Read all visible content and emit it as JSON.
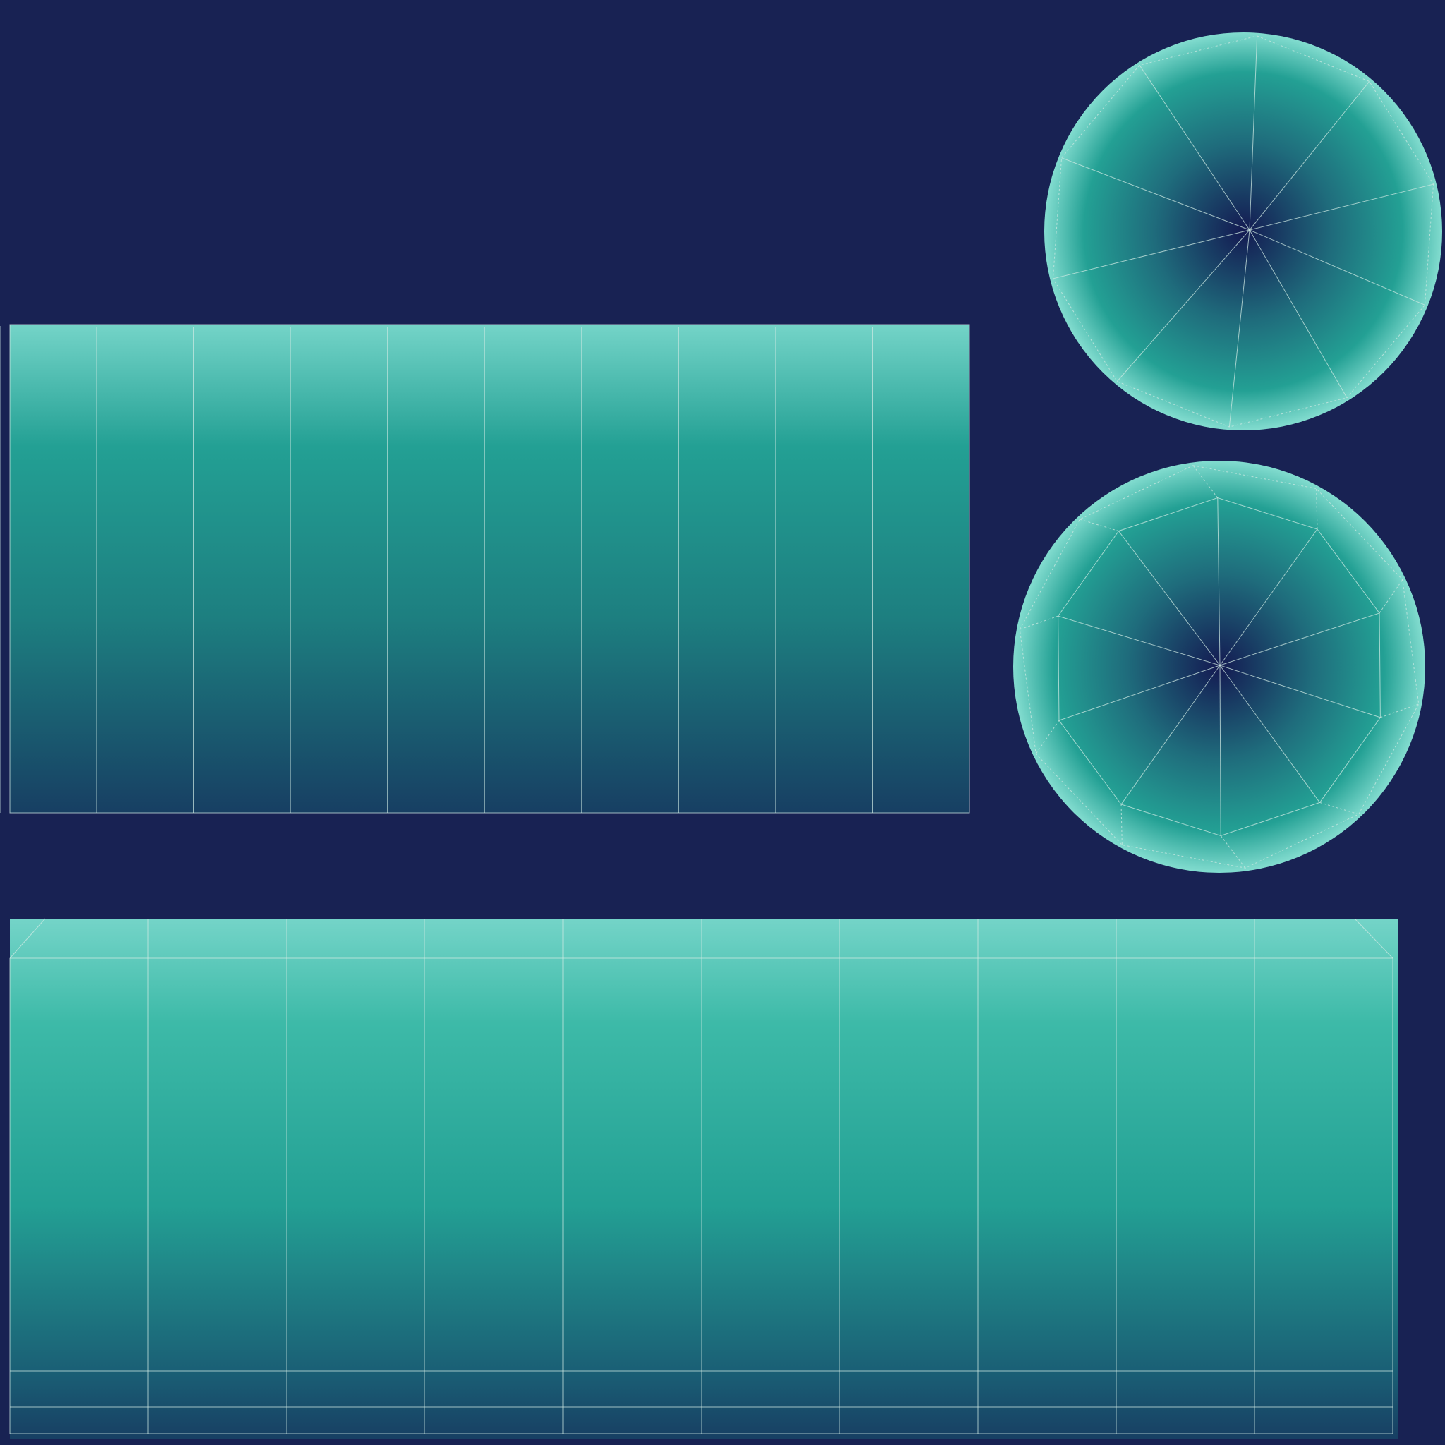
{
  "colors": {
    "background": "#182253",
    "gradient_top": "#74d4c8",
    "gradient_mid": "#23a094",
    "gradient_bottom": "#173f63",
    "wire": "#cfe9e3",
    "disc_center": "#141a52",
    "disc_edge": "#82dccf"
  },
  "uv_islands": [
    {
      "name": "cylinder-side-strip",
      "columns": 10
    },
    {
      "name": "top-cap-disc",
      "segments": 10
    },
    {
      "name": "bottom-cap-disc",
      "segments": 10,
      "inner_ring": true
    },
    {
      "name": "box-shell-strip",
      "columns": 10,
      "bottom_rows": 2
    }
  ]
}
